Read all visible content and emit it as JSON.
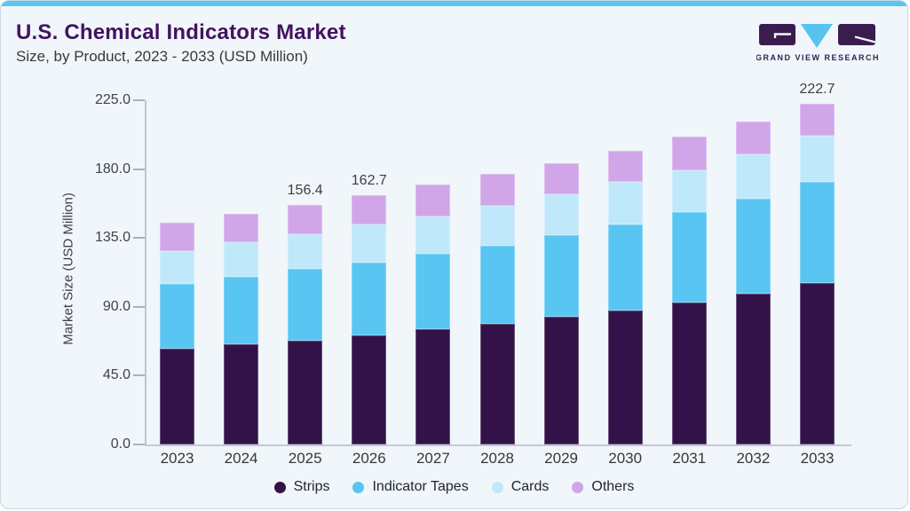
{
  "header": {
    "title": "U.S. Chemical Indicators Market",
    "subtitle": "Size, by Product, 2023 - 2033 (USD Million)",
    "logo_text": "GRAND VIEW RESEARCH"
  },
  "colors": {
    "accent_top_bar": "#58c5ef",
    "title_text": "#44125f",
    "card_background": "#f0f6fa",
    "strips": "#331249",
    "indicator_tapes": "#58c5f2",
    "cards": "#bfe8fa",
    "others": "#d0a6e9"
  },
  "chart_data": {
    "type": "bar",
    "stacked": true,
    "title": "U.S. Chemical Indicators Market Size, by Product, 2023 - 2033 (USD Million)",
    "xlabel": "",
    "ylabel": "Market Size (USD Million)",
    "ylim": [
      0,
      225
    ],
    "yticks": [
      0,
      45,
      90,
      135,
      180,
      225
    ],
    "ytick_labels": [
      "0.0",
      "45.0",
      "90.0",
      "135.0",
      "180.0",
      "225.0"
    ],
    "grid": false,
    "legend_position": "bottom",
    "categories": [
      "2023",
      "2024",
      "2025",
      "2026",
      "2027",
      "2028",
      "2029",
      "2030",
      "2031",
      "2032",
      "2033"
    ],
    "series": [
      {
        "name": "Strips",
        "color": "#331249",
        "values": [
          62.7,
          65.3,
          67.8,
          71.2,
          75.1,
          78.6,
          83.4,
          87.8,
          92.8,
          98.7,
          105.5
        ]
      },
      {
        "name": "Indicator Tapes",
        "color": "#58c5f2",
        "values": [
          42.5,
          44.2,
          47.0,
          47.7,
          49.6,
          51.5,
          53.6,
          55.7,
          59.0,
          61.9,
          65.9
        ]
      },
      {
        "name": "Cards",
        "color": "#bfe8fa",
        "values": [
          21.4,
          22.4,
          22.8,
          24.6,
          24.5,
          25.6,
          26.6,
          27.9,
          27.5,
          29.0,
          30.4
        ]
      },
      {
        "name": "Others",
        "color": "#d0a6e9",
        "values": [
          18.3,
          18.9,
          18.8,
          19.2,
          20.7,
          21.1,
          20.1,
          20.7,
          22.1,
          21.6,
          20.9
        ]
      }
    ],
    "totals": [
      144.9,
      150.8,
      156.4,
      162.7,
      169.9,
      176.8,
      183.7,
      192.1,
      201.4,
      211.2,
      222.7
    ],
    "total_labels": [
      null,
      null,
      "156.4",
      "162.7",
      null,
      null,
      null,
      null,
      null,
      null,
      "222.7"
    ]
  }
}
